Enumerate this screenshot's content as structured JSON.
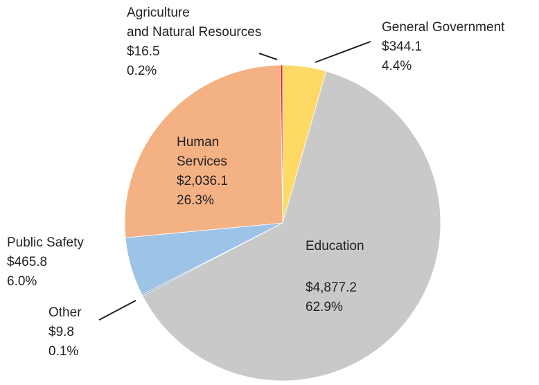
{
  "chart_data": {
    "type": "pie",
    "categories": [
      "General Government",
      "Education",
      "Other",
      "Public Safety",
      "Human\nServices",
      "Agriculture\nand Natural Resources"
    ],
    "values": [
      344.1,
      4877.2,
      9.8,
      465.8,
      2036.1,
      16.5
    ],
    "value_labels": [
      "$344.1",
      "$4,877.2",
      "$9.8",
      "$465.8",
      "$2,036.1",
      "$16.5"
    ],
    "percentages": [
      4.4,
      62.9,
      0.1,
      6.0,
      26.3,
      0.2
    ],
    "percent_labels": [
      "4.4%",
      "62.9%",
      "0.1%",
      "6.0%",
      "26.3%",
      "0.2%"
    ],
    "colors": [
      "#ffd966",
      "#c9c9c9",
      "#4f81bd",
      "#9dc3e6",
      "#f4b183",
      "#e02020"
    ]
  }
}
